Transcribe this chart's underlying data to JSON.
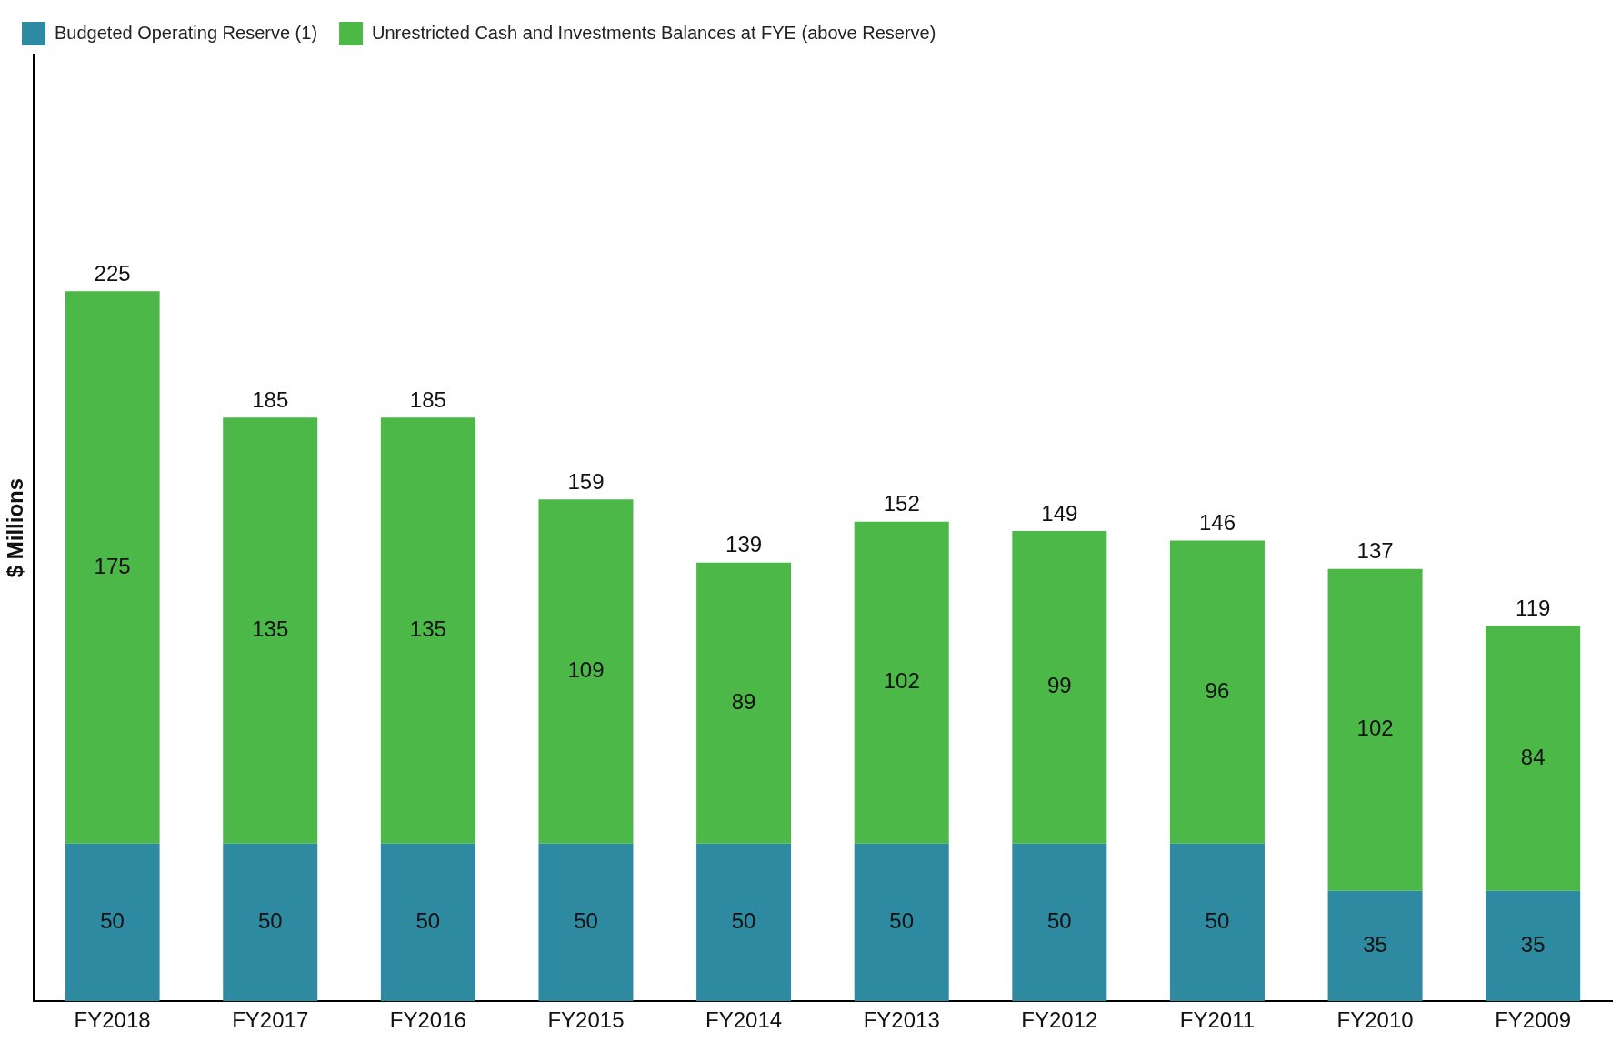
{
  "chart_data": {
    "type": "bar",
    "stacked": true,
    "ylabel": "$ Millions",
    "categories": [
      "FY2018",
      "FY2017",
      "FY2016",
      "FY2015",
      "FY2014",
      "FY2013",
      "FY2012",
      "FY2011",
      "FY2010",
      "FY2009"
    ],
    "series": [
      {
        "name": "Budgeted Operating Reserve (1)",
        "color": "#2e8aa0",
        "values": [
          50,
          50,
          50,
          50,
          50,
          50,
          50,
          50,
          35,
          35
        ]
      },
      {
        "name": "Unrestricted Cash and Investments Balances at FYE (above Reserve)",
        "color": "#4cb848",
        "values": [
          175,
          135,
          135,
          109,
          89,
          102,
          99,
          96,
          102,
          84
        ]
      }
    ],
    "totals": [
      "225",
      "185",
      "185",
      "159",
      "139",
      "152",
      "149",
      "146",
      "137",
      "119"
    ],
    "data_labels": true,
    "ylim": [
      0,
      300
    ],
    "grid": false,
    "legend": "top",
    "tick_labels": "x"
  }
}
